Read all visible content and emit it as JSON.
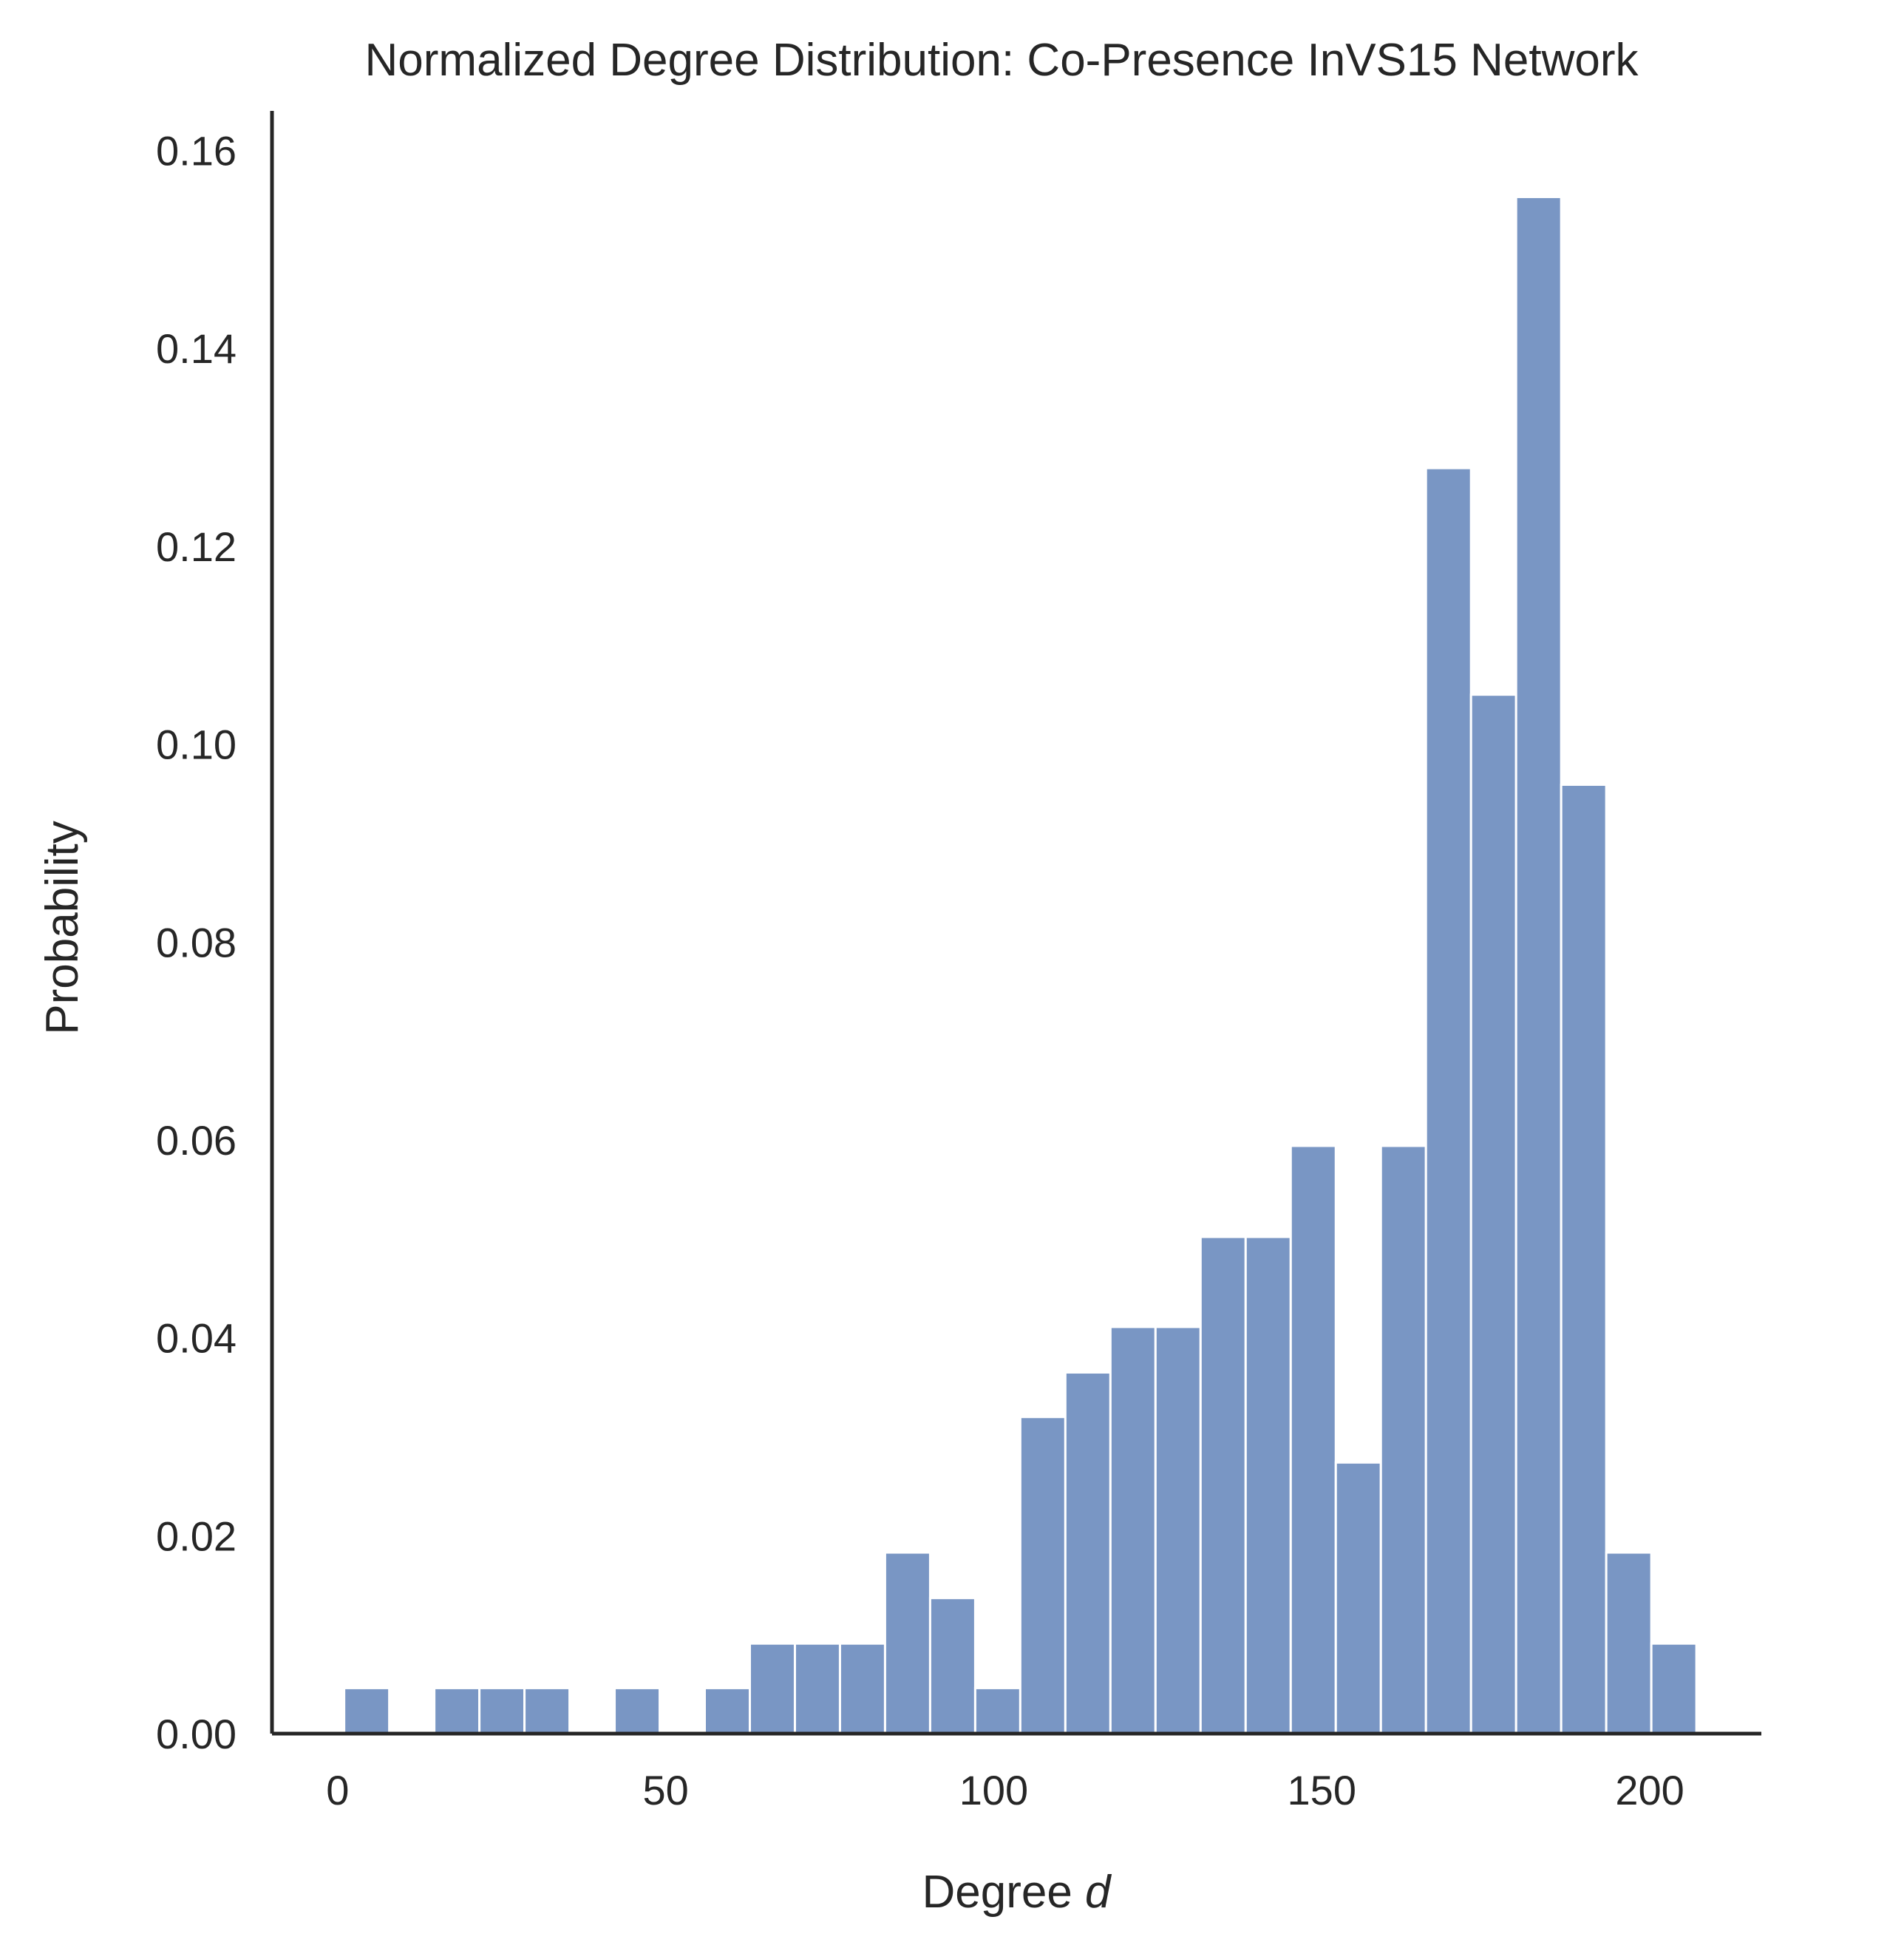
{
  "chart_data": {
    "type": "bar",
    "title": "Normalized Degree Distribution: Co-Presence InVS15 Network",
    "xlabel_prefix": "Degree ",
    "xlabel_var": "d",
    "ylabel": "Probability",
    "xlim": [
      -10,
      217
    ],
    "ylim": [
      0,
      0.164
    ],
    "xticks": [
      0,
      50,
      100,
      150,
      200
    ],
    "yticks": [
      0.0,
      0.02,
      0.04,
      0.06,
      0.08,
      0.1,
      0.12,
      0.14,
      0.16
    ],
    "bar_color": "#7996c4",
    "grid": false,
    "bin_width": 6.87,
    "bins": [
      {
        "x": 1.0,
        "value": 0.0046
      },
      {
        "x": 7.87,
        "value": 0.0
      },
      {
        "x": 14.74,
        "value": 0.0046
      },
      {
        "x": 21.61,
        "value": 0.0046
      },
      {
        "x": 28.48,
        "value": 0.0046
      },
      {
        "x": 35.35,
        "value": 0.0
      },
      {
        "x": 42.22,
        "value": 0.0046
      },
      {
        "x": 49.09,
        "value": 0.0
      },
      {
        "x": 55.96,
        "value": 0.0046
      },
      {
        "x": 62.83,
        "value": 0.0091
      },
      {
        "x": 69.7,
        "value": 0.0091
      },
      {
        "x": 76.57,
        "value": 0.0091
      },
      {
        "x": 83.44,
        "value": 0.0183
      },
      {
        "x": 90.31,
        "value": 0.0137
      },
      {
        "x": 97.18,
        "value": 0.0046
      },
      {
        "x": 104.05,
        "value": 0.032
      },
      {
        "x": 110.92,
        "value": 0.0365
      },
      {
        "x": 117.79,
        "value": 0.0411
      },
      {
        "x": 124.66,
        "value": 0.0411
      },
      {
        "x": 131.53,
        "value": 0.0502
      },
      {
        "x": 138.4,
        "value": 0.0502
      },
      {
        "x": 145.27,
        "value": 0.0594
      },
      {
        "x": 152.14,
        "value": 0.0274
      },
      {
        "x": 159.01,
        "value": 0.0594
      },
      {
        "x": 165.88,
        "value": 0.1279
      },
      {
        "x": 172.75,
        "value": 0.105
      },
      {
        "x": 179.62,
        "value": 0.1553
      },
      {
        "x": 186.49,
        "value": 0.0959
      },
      {
        "x": 193.36,
        "value": 0.0183
      },
      {
        "x": 200.23,
        "value": 0.0091
      }
    ]
  }
}
